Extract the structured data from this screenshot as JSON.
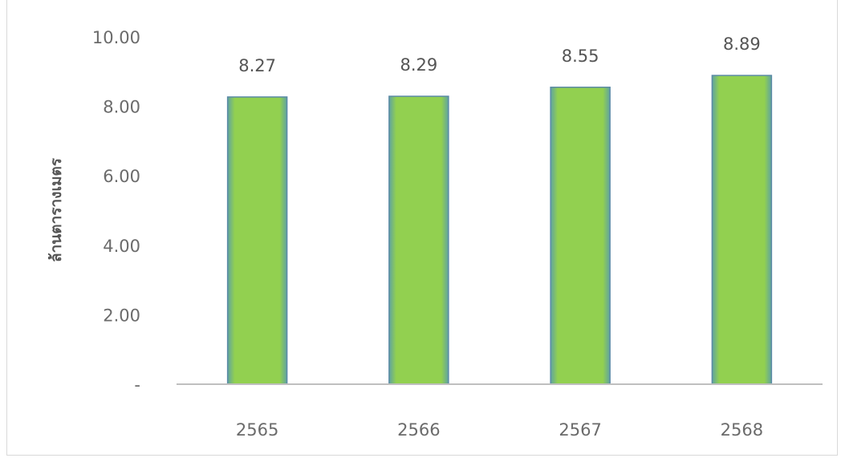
{
  "chart_data": {
    "type": "bar",
    "title": "",
    "xlabel": "",
    "ylabel": "ล้านตารางเมตร",
    "categories": [
      "2565",
      "2566",
      "2567",
      "2568"
    ],
    "values": [
      8.27,
      8.29,
      8.55,
      8.89
    ],
    "value_labels": [
      "8.27",
      "8.29",
      "8.55",
      "8.89"
    ],
    "ylim": [
      0,
      10
    ],
    "yticks": [
      0,
      2,
      4,
      6,
      8,
      10
    ],
    "ytick_labels": [
      "-",
      "2.00",
      "4.00",
      "6.00",
      "8.00",
      "10.00"
    ],
    "grid": false,
    "legend": "none",
    "colors": {
      "bar_fill": "#92d050",
      "bar_edge": "#5b8aa6",
      "axis_line": "#bfbfbf"
    }
  }
}
